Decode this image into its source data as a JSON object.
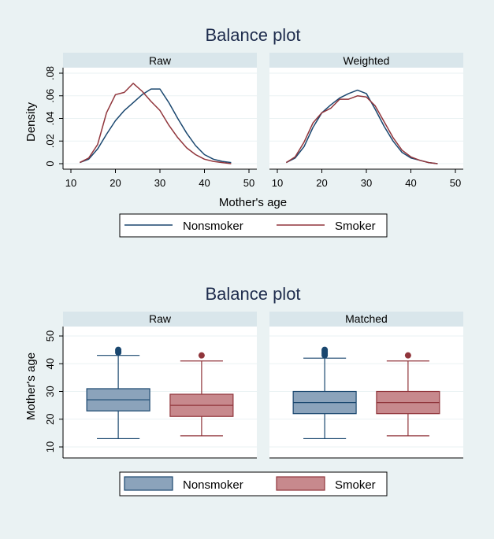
{
  "colors": {
    "background": "#eaf2f3",
    "panel_header": "#d9e6eb",
    "nonsmoker": "#1a476f",
    "smoker": "#90353b",
    "nonsmoker_fill": "#8ba3bb",
    "smoker_fill": "#c7898d"
  },
  "chart_data": [
    {
      "type": "line",
      "title": "Balance plot",
      "panels": [
        "Raw",
        "Weighted"
      ],
      "xlabel": "Mother's age",
      "ylabel": "Density",
      "xlim": [
        10,
        50
      ],
      "ylim": [
        0,
        0.08
      ],
      "xticks": [
        "10",
        "20",
        "30",
        "40",
        "50"
      ],
      "yticks": [
        "0",
        ".02",
        ".04",
        ".06",
        ".08"
      ],
      "legend": {
        "position": "bottom",
        "entries": [
          "Nonsmoker",
          "Smoker"
        ]
      },
      "grid": true,
      "x": [
        12,
        14,
        16,
        18,
        20,
        22,
        24,
        26,
        28,
        30,
        32,
        34,
        36,
        38,
        40,
        42,
        44,
        46
      ],
      "series": [
        {
          "panel": "Raw",
          "name": "Nonsmoker",
          "values": [
            0.001,
            0.004,
            0.013,
            0.026,
            0.038,
            0.047,
            0.054,
            0.061,
            0.066,
            0.066,
            0.054,
            0.04,
            0.027,
            0.016,
            0.008,
            0.004,
            0.002,
            0.001
          ]
        },
        {
          "panel": "Raw",
          "name": "Smoker",
          "values": [
            0.001,
            0.005,
            0.017,
            0.045,
            0.061,
            0.063,
            0.071,
            0.064,
            0.055,
            0.047,
            0.034,
            0.023,
            0.014,
            0.008,
            0.004,
            0.002,
            0.001,
            0.0
          ]
        },
        {
          "panel": "Weighted",
          "name": "Nonsmoker",
          "values": [
            0.001,
            0.005,
            0.015,
            0.032,
            0.045,
            0.052,
            0.058,
            0.062,
            0.065,
            0.062,
            0.048,
            0.033,
            0.02,
            0.01,
            0.005,
            0.003,
            0.001,
            0.0
          ]
        },
        {
          "panel": "Weighted",
          "name": "Smoker",
          "values": [
            0.001,
            0.006,
            0.019,
            0.036,
            0.045,
            0.049,
            0.057,
            0.057,
            0.06,
            0.059,
            0.051,
            0.037,
            0.023,
            0.012,
            0.006,
            0.003,
            0.001,
            0.0
          ]
        }
      ]
    },
    {
      "type": "box",
      "title": "Balance plot",
      "panels": [
        "Raw",
        "Matched"
      ],
      "ylabel": "Mother's age",
      "ylim": [
        10,
        50
      ],
      "yticks": [
        "10",
        "20",
        "30",
        "40",
        "50"
      ],
      "legend": {
        "position": "bottom",
        "entries": [
          "Nonsmoker",
          "Smoker"
        ]
      },
      "grid": true,
      "boxes": [
        {
          "panel": "Raw",
          "group": "Nonsmoker",
          "min": 13,
          "q1": 23,
          "median": 27,
          "q3": 31,
          "max": 43,
          "outliers": [
            44,
            44.5,
            45
          ]
        },
        {
          "panel": "Raw",
          "group": "Smoker",
          "min": 14,
          "q1": 21,
          "median": 25,
          "q3": 29,
          "max": 41,
          "outliers": [
            43
          ]
        },
        {
          "panel": "Matched",
          "group": "Nonsmoker",
          "min": 13,
          "q1": 22,
          "median": 26,
          "q3": 30,
          "max": 42,
          "outliers": [
            43,
            43.5,
            44,
            44.5,
            45
          ]
        },
        {
          "panel": "Matched",
          "group": "Smoker",
          "min": 14,
          "q1": 22,
          "median": 26,
          "q3": 30,
          "max": 41,
          "outliers": [
            43
          ]
        }
      ]
    }
  ]
}
